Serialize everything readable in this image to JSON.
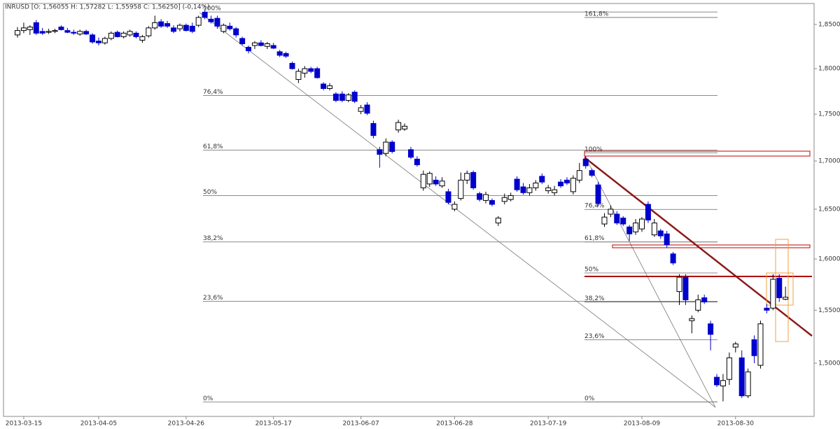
{
  "chart_data": {
    "type": "candlestick",
    "title": "INRUSD [O: 1,56055  H: 1,57282  L: 1,55958  C: 1,56250] (-0,14%)",
    "categories": [
      null,
      "2013-03-15",
      null,
      null,
      null,
      null,
      null,
      null,
      null,
      null,
      null,
      null,
      null,
      "2013-04-05",
      null,
      null,
      null,
      null,
      null,
      null,
      null,
      null,
      null,
      null,
      null,
      null,
      null,
      "2013-04-26",
      null,
      null,
      null,
      null,
      null,
      null,
      null,
      null,
      null,
      null,
      null,
      null,
      null,
      "2013-05-17",
      null,
      null,
      null,
      null,
      null,
      null,
      null,
      null,
      null,
      null,
      null,
      null,
      null,
      "2013-06-07",
      null,
      null,
      null,
      null,
      null,
      null,
      null,
      null,
      null,
      null,
      null,
      null,
      null,
      null,
      "2013-06-28",
      null,
      null,
      null,
      null,
      null,
      null,
      null,
      null,
      null,
      null,
      null,
      null,
      null,
      null,
      "2013-07-19",
      null,
      null,
      null,
      null,
      null,
      null,
      null,
      null,
      null,
      null,
      null,
      null,
      null,
      null,
      "2013-08-09",
      null,
      null,
      null,
      null,
      null,
      null,
      null,
      null,
      null,
      null,
      null,
      null,
      null,
      null,
      "2013-08-30",
      null,
      null,
      null,
      null,
      null,
      null,
      null,
      null
    ],
    "open": [
      1.838,
      1.843,
      1.844,
      1.852,
      1.842,
      1.841,
      1.842,
      1.847,
      1.843,
      1.841,
      1.839,
      1.842,
      1.838,
      1.831,
      1.829,
      1.834,
      1.841,
      1.836,
      1.838,
      1.84,
      1.832,
      1.837,
      1.846,
      1.853,
      1.851,
      1.846,
      1.845,
      1.849,
      1.848,
      1.849,
      1.864,
      1.856,
      1.857,
      1.842,
      1.848,
      1.845,
      1.834,
      1.824,
      1.826,
      1.829,
      1.825,
      1.826,
      1.819,
      1.817,
      1.806,
      1.788,
      1.795,
      1.8,
      1.8,
      1.783,
      1.778,
      1.772,
      1.772,
      1.765,
      1.774,
      1.753,
      1.76,
      1.74,
      1.712,
      1.708,
      1.72,
      1.733,
      1.734,
      1.712,
      1.702,
      1.672,
      1.676,
      1.68,
      1.674,
      1.668,
      1.65,
      1.661,
      1.68,
      1.688,
      1.666,
      1.659,
      1.659,
      1.636,
      1.658,
      1.66,
      1.681,
      1.673,
      1.667,
      1.672,
      1.684,
      1.669,
      1.667,
      1.678,
      1.68,
      1.668,
      1.68,
      1.702,
      1.69,
      1.675,
      1.635,
      1.645,
      1.645,
      1.641,
      1.632,
      1.627,
      1.63,
      1.655,
      1.624,
      1.628,
      1.625,
      1.605,
      1.568,
      1.582,
      1.54,
      1.55,
      1.562,
      1.537,
      1.487,
      1.479,
      1.485,
      1.515,
      1.505,
      1.47,
      1.522,
      1.498,
      1.552,
      1.552,
      1.581,
      1.56055
    ],
    "high": [
      1.847,
      1.852,
      1.849,
      1.855,
      1.846,
      1.845,
      1.845,
      1.849,
      1.846,
      1.844,
      1.844,
      1.844,
      1.84,
      1.835,
      1.836,
      1.842,
      1.843,
      1.842,
      1.844,
      1.842,
      1.838,
      1.848,
      1.86,
      1.856,
      1.854,
      1.849,
      1.851,
      1.851,
      1.852,
      1.86,
      1.866,
      1.86,
      1.86,
      1.851,
      1.852,
      1.847,
      1.836,
      1.826,
      1.831,
      1.832,
      1.83,
      1.829,
      1.821,
      1.819,
      1.808,
      1.8,
      1.803,
      1.802,
      1.802,
      1.785,
      1.784,
      1.774,
      1.775,
      1.773,
      1.776,
      1.76,
      1.763,
      1.743,
      1.715,
      1.724,
      1.722,
      1.744,
      1.74,
      1.715,
      1.705,
      1.69,
      1.689,
      1.684,
      1.683,
      1.671,
      1.658,
      1.688,
      1.69,
      1.69,
      1.668,
      1.668,
      1.661,
      1.643,
      1.666,
      1.667,
      1.684,
      1.677,
      1.676,
      1.68,
      1.687,
      1.675,
      1.674,
      1.681,
      1.683,
      1.685,
      1.698,
      1.705,
      1.692,
      1.678,
      1.646,
      1.654,
      1.648,
      1.643,
      1.634,
      1.64,
      1.642,
      1.658,
      1.64,
      1.63,
      1.628,
      1.607,
      1.585,
      1.585,
      1.545,
      1.565,
      1.565,
      1.54,
      1.49,
      1.49,
      1.51,
      1.52,
      1.512,
      1.495,
      1.526,
      1.54,
      1.556,
      1.585,
      1.585,
      1.57282
    ],
    "low": [
      1.835,
      1.84,
      1.838,
      1.838,
      1.838,
      1.839,
      1.84,
      1.843,
      1.84,
      1.838,
      1.837,
      1.838,
      1.828,
      1.826,
      1.827,
      1.832,
      1.835,
      1.834,
      1.836,
      1.834,
      1.829,
      1.835,
      1.844,
      1.846,
      1.846,
      1.84,
      1.842,
      1.842,
      1.84,
      1.847,
      1.856,
      1.851,
      1.845,
      1.84,
      1.843,
      1.835,
      1.826,
      1.817,
      1.822,
      1.825,
      1.822,
      1.822,
      1.813,
      1.812,
      1.799,
      1.784,
      1.79,
      1.795,
      1.789,
      1.776,
      1.776,
      1.763,
      1.763,
      1.763,
      1.762,
      1.75,
      1.749,
      1.724,
      1.693,
      1.705,
      1.708,
      1.73,
      1.732,
      1.702,
      1.694,
      1.669,
      1.673,
      1.674,
      1.672,
      1.655,
      1.648,
      1.659,
      1.676,
      1.67,
      1.658,
      1.656,
      1.653,
      1.633,
      1.655,
      1.658,
      1.668,
      1.665,
      1.664,
      1.669,
      1.676,
      1.666,
      1.664,
      1.672,
      1.675,
      1.665,
      1.677,
      1.692,
      1.683,
      1.653,
      1.632,
      1.642,
      1.634,
      1.633,
      1.618,
      1.624,
      1.627,
      1.636,
      1.622,
      1.62,
      1.611,
      1.594,
      1.555,
      1.555,
      1.528,
      1.548,
      1.556,
      1.512,
      1.478,
      1.465,
      1.48,
      1.51,
      1.468,
      1.468,
      1.5,
      1.495,
      1.547,
      1.55,
      1.558,
      1.55958
    ],
    "close": [
      1.843,
      1.846,
      1.847,
      1.84,
      1.84,
      1.842,
      1.843,
      1.844,
      1.841,
      1.84,
      1.842,
      1.839,
      1.83,
      1.829,
      1.834,
      1.84,
      1.836,
      1.84,
      1.842,
      1.836,
      1.836,
      1.846,
      1.852,
      1.848,
      1.848,
      1.842,
      1.849,
      1.843,
      1.842,
      1.858,
      1.858,
      1.853,
      1.848,
      1.849,
      1.845,
      1.838,
      1.828,
      1.82,
      1.829,
      1.826,
      1.828,
      1.823,
      1.815,
      1.814,
      1.8,
      1.797,
      1.8,
      1.797,
      1.79,
      1.778,
      1.781,
      1.765,
      1.765,
      1.771,
      1.764,
      1.757,
      1.751,
      1.727,
      1.707,
      1.72,
      1.71,
      1.741,
      1.737,
      1.704,
      1.696,
      1.686,
      1.687,
      1.676,
      1.679,
      1.657,
      1.655,
      1.68,
      1.687,
      1.672,
      1.66,
      1.665,
      1.655,
      1.641,
      1.662,
      1.664,
      1.67,
      1.667,
      1.672,
      1.677,
      1.678,
      1.672,
      1.67,
      1.674,
      1.677,
      1.682,
      1.69,
      1.695,
      1.685,
      1.656,
      1.642,
      1.65,
      1.636,
      1.635,
      1.625,
      1.636,
      1.64,
      1.639,
      1.636,
      1.623,
      1.614,
      1.596,
      1.582,
      1.56,
      1.542,
      1.56,
      1.558,
      1.527,
      1.48,
      1.484,
      1.505,
      1.518,
      1.47,
      1.492,
      1.507,
      1.537,
      1.55,
      1.58,
      1.562,
      1.5625
    ],
    "up_color": "#ffffff",
    "down_color": "#0000cd",
    "ylim": [
      1.4514,
      1.8741
    ],
    "log_scale": true,
    "yticks": [
      {
        "value": 1.5,
        "label": "1,50000"
      },
      {
        "value": 1.55,
        "label": "1,55000"
      },
      {
        "value": 1.6,
        "label": "1,60000"
      },
      {
        "value": 1.65,
        "label": "1,65000"
      },
      {
        "value": 1.7,
        "label": "1,70000"
      },
      {
        "value": 1.75,
        "label": "1,75000"
      },
      {
        "value": 1.8,
        "label": "1,80000"
      },
      {
        "value": 1.85,
        "label": "1,85000"
      }
    ],
    "fibonacci": [
      {
        "levels": [
          {
            "value": 1.8643,
            "label": "100%"
          },
          {
            "value": 1.7703,
            "label": "76,4%"
          },
          {
            "value": 1.7116,
            "label": "61,8%"
          },
          {
            "value": 1.6639,
            "label": "50%"
          },
          {
            "value": 1.6169,
            "label": "38,2%"
          },
          {
            "value": 1.5586,
            "label": "23,6%"
          },
          {
            "value": 1.4645,
            "label": "0%"
          }
        ]
      },
      {
        "levels": [
          {
            "value": 1.858,
            "label": "161,8%"
          },
          {
            "value": 1.7087,
            "label": "100%"
          },
          {
            "value": 1.6498,
            "label": "76,4%"
          },
          {
            "value": 1.6169,
            "label": "61,8%"
          },
          {
            "value": 1.5862,
            "label": "50%"
          },
          {
            "value": 1.5579,
            "label": "38,2%"
          },
          {
            "value": 1.5219,
            "label": "23,6%"
          },
          {
            "value": 1.4645,
            "label": "0%"
          }
        ]
      }
    ]
  }
}
